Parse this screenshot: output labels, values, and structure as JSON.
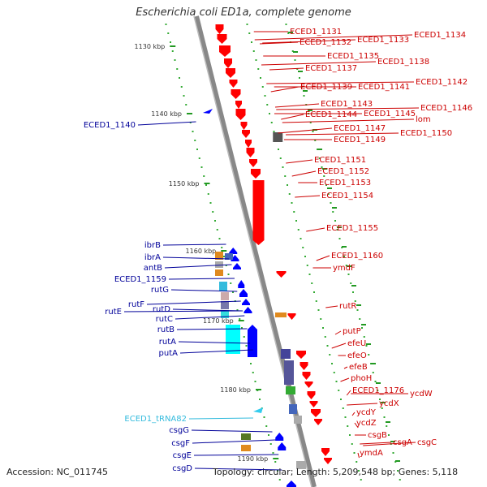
{
  "title": "Escherichia coli ED1a, complete genome",
  "footer": {
    "accession": "Accession: NC_011745",
    "stats": "Topology: circular; Length: 5,209,548 bp; Genes: 5,118"
  },
  "colors": {
    "forward_gene": "#ff0000",
    "reverse_gene": "#0000ff",
    "trna": "#33ccee",
    "backbone": "#888888",
    "tick": "#229922",
    "dot": "#33aa33",
    "label_right": "#cc0000",
    "label_left": "#000099",
    "label_trna": "#33bbdd"
  },
  "scale_ticks": [
    {
      "label": "1130 kbp"
    },
    {
      "label": "1140 kbp"
    },
    {
      "label": "1150 kbp"
    },
    {
      "label": "1160 kbp"
    },
    {
      "label": "1170 kbp"
    },
    {
      "label": "1180 kbp"
    },
    {
      "label": "1190 kbp"
    }
  ],
  "right_labels": [
    "ECED1_1131",
    "ECED1_1132",
    "ECED1_1133",
    "ECED1_1134",
    "ECED1_1135",
    "ECED1_1137",
    "ECED1_1138",
    "ECED1_1139",
    "ECED1_1141",
    "ECED1_1142",
    "ECED1_1143",
    "ECED1_1144",
    "ECED1_1145",
    "ECED1_1146",
    "lom",
    "ECED1_1147",
    "ECED1_1149",
    "ECED1_1150",
    "ECED1_1151",
    "ECED1_1152",
    "ECED1_1153",
    "ECED1_1154",
    "ECED1_1155",
    "ECED1_1160",
    "ymdF",
    "rutR",
    "putP",
    "efeU",
    "efeO",
    "efeB",
    "phoH",
    "ECED1_1176",
    "ycdW",
    "ycdX",
    "ycdY",
    "ycdZ",
    "csgB",
    "csgA",
    "csgC",
    "ymdA"
  ],
  "left_labels": [
    "ECED1_1140",
    "ibrB",
    "ibrA",
    "antB",
    "ECED1_1159",
    "rutG",
    "rutF",
    "rutE",
    "rutD",
    "rutC",
    "rutB",
    "rutA",
    "putA",
    "ECED1_tRNA82",
    "csgG",
    "csgF",
    "csgE",
    "csgD"
  ]
}
